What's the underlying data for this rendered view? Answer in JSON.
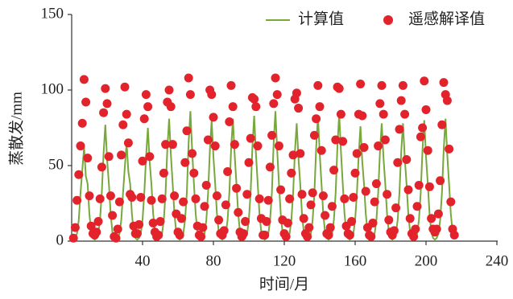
{
  "chart_data": {
    "type": "line-scatter",
    "xlabel": "时间/月",
    "ylabel": "蒸散发/mm",
    "xlim": [
      0,
      240
    ],
    "xticks": [
      40,
      80,
      120,
      160,
      200,
      240
    ],
    "ylim": [
      0,
      150
    ],
    "yticks": [
      0,
      50,
      100,
      150
    ],
    "legend": "upper right",
    "x": [
      1,
      2,
      3,
      4,
      5,
      6,
      7,
      8,
      9,
      10,
      11,
      12,
      13,
      14,
      15,
      16,
      17,
      18,
      19,
      20,
      21,
      22,
      23,
      24,
      25,
      26,
      27,
      28,
      29,
      30,
      31,
      32,
      33,
      34,
      35,
      36,
      37,
      38,
      39,
      40,
      41,
      42,
      43,
      44,
      45,
      46,
      47,
      48,
      49,
      50,
      51,
      52,
      53,
      54,
      55,
      56,
      57,
      58,
      59,
      60,
      61,
      62,
      63,
      64,
      65,
      66,
      67,
      68,
      69,
      70,
      71,
      72,
      73,
      74,
      75,
      76,
      77,
      78,
      79,
      80,
      81,
      82,
      83,
      84,
      85,
      86,
      87,
      88,
      89,
      90,
      91,
      92,
      93,
      94,
      95,
      96,
      97,
      98,
      99,
      100,
      101,
      102,
      103,
      104,
      105,
      106,
      107,
      108,
      109,
      110,
      111,
      112,
      113,
      114,
      115,
      116,
      117,
      118,
      119,
      120,
      121,
      122,
      123,
      124,
      125,
      126,
      127,
      128,
      129,
      130,
      131,
      132,
      133,
      134,
      135,
      136,
      137,
      138,
      139,
      140,
      141,
      142,
      143,
      144,
      145,
      146,
      147,
      148,
      149,
      150,
      151,
      152,
      153,
      154,
      155,
      156,
      157,
      158,
      159,
      160,
      161,
      162,
      163,
      164,
      165,
      166,
      167,
      168,
      169,
      170,
      171,
      172,
      173,
      174,
      175,
      176,
      177,
      178,
      179,
      180,
      181,
      182,
      183,
      184,
      185,
      186,
      187,
      188,
      189,
      190,
      191,
      192,
      193,
      194,
      195,
      196,
      197,
      198,
      199,
      200,
      201,
      202,
      203,
      204,
      205,
      206,
      207,
      208,
      209,
      210,
      211,
      212,
      213,
      214,
      215,
      216
    ],
    "series": [
      {
        "name": "计算值",
        "style": "line",
        "color": "#78a83c",
        "values": [
          1,
          2,
          5,
          14,
          32,
          47,
          62,
          43,
          38,
          18,
          6,
          2,
          1,
          2,
          5,
          14,
          32,
          58,
          77,
          54,
          38,
          18,
          6,
          2,
          1,
          2,
          5,
          14,
          32,
          49,
          65,
          46,
          38,
          18,
          6,
          2,
          1,
          2,
          5,
          14,
          32,
          56,
          75,
          53,
          38,
          18,
          6,
          2,
          1,
          2,
          5,
          14,
          32,
          61,
          81,
          57,
          38,
          18,
          6,
          2,
          1,
          2,
          5,
          14,
          32,
          65,
          86,
          60,
          38,
          18,
          6,
          2,
          1,
          2,
          5,
          14,
          32,
          60,
          80,
          56,
          38,
          18,
          6,
          2,
          1,
          2,
          5,
          14,
          32,
          61,
          81,
          57,
          38,
          18,
          6,
          2,
          1,
          2,
          5,
          14,
          32,
          62,
          83,
          58,
          38,
          18,
          6,
          2,
          1,
          2,
          5,
          14,
          32,
          65,
          86,
          60,
          38,
          18,
          6,
          2,
          1,
          2,
          5,
          14,
          32,
          59,
          78,
          55,
          38,
          18,
          6,
          2,
          1,
          2,
          5,
          14,
          32,
          62,
          83,
          58,
          38,
          18,
          6,
          2,
          1,
          2,
          5,
          14,
          32,
          63,
          84,
          59,
          38,
          18,
          6,
          2,
          1,
          2,
          5,
          14,
          32,
          57,
          76,
          53,
          38,
          18,
          6,
          2,
          1,
          2,
          5,
          14,
          32,
          59,
          78,
          55,
          38,
          18,
          6,
          2,
          1,
          2,
          5,
          14,
          32,
          59,
          78,
          55,
          38,
          18,
          6,
          2,
          1,
          2,
          5,
          14,
          32,
          60,
          80,
          56,
          38,
          18,
          6,
          2,
          1,
          2,
          5,
          14,
          32,
          61,
          81,
          57,
          38,
          18,
          6,
          2
        ]
      },
      {
        "name": "遥感解译值",
        "style": "scatter",
        "color": "#e3232c",
        "values": [
          2,
          9,
          27,
          44,
          63,
          78,
          107,
          92,
          55,
          30,
          10,
          5,
          4,
          6,
          13,
          28,
          49,
          85,
          101,
          91,
          56,
          30,
          17,
          3,
          2,
          8,
          26,
          57,
          77,
          102,
          84,
          65,
          31,
          29,
          10,
          5,
          5,
          11,
          29,
          53,
          81,
          97,
          89,
          56,
          27,
          12,
          6,
          3,
          4,
          13,
          28,
          45,
          64,
          92,
          100,
          89,
          64,
          30,
          18,
          6,
          4,
          15,
          26,
          52,
          73,
          108,
          97,
          58,
          45,
          28,
          10,
          4,
          3,
          9,
          23,
          37,
          67,
          100,
          97,
          82,
          63,
          30,
          14,
          5,
          4,
          7,
          24,
          46,
          79,
          103,
          89,
          64,
          35,
          19,
          6,
          3,
          5,
          13,
          31,
          52,
          68,
          95,
          94,
          89,
          63,
          28,
          15,
          4,
          4,
          13,
          27,
          49,
          70,
          91,
          108,
          97,
          63,
          34,
          14,
          5,
          3,
          12,
          28,
          45,
          57,
          94,
          98,
          88,
          58,
          31,
          15,
          5,
          3,
          9,
          24,
          32,
          70,
          81,
          103,
          89,
          60,
          30,
          17,
          5,
          4,
          9,
          23,
          47,
          67,
          102,
          101,
          84,
          66,
          28,
          10,
          5,
          4,
          13,
          29,
          45,
          58,
          84,
          104,
          83,
          62,
          33,
          9,
          4,
          3,
          12,
          26,
          38,
          63,
          91,
          103,
          84,
          67,
          31,
          14,
          6,
          4,
          7,
          22,
          52,
          74,
          93,
          103,
          84,
          54,
          34,
          15,
          5,
          3,
          8,
          23,
          37,
          69,
          75,
          106,
          87,
          60,
          36,
          15,
          8,
          6,
          8,
          18,
          40,
          77,
          105,
          97,
          93,
          61,
          26,
          8,
          4
        ]
      }
    ]
  }
}
